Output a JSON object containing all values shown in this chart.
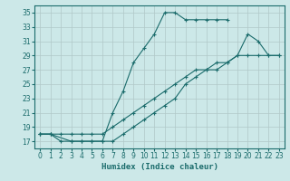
{
  "xlabel": "Humidex (Indice chaleur)",
  "bg_color": "#cce8e8",
  "grid_color": "#b0c8c8",
  "line_color": "#1a6b6b",
  "xlim": [
    -0.5,
    23.5
  ],
  "ylim": [
    16,
    36
  ],
  "xticks": [
    0,
    1,
    2,
    3,
    4,
    5,
    6,
    7,
    8,
    9,
    10,
    11,
    12,
    13,
    14,
    15,
    16,
    17,
    18,
    19,
    20,
    21,
    22,
    23
  ],
  "yticks": [
    17,
    19,
    21,
    23,
    25,
    27,
    29,
    31,
    33,
    35
  ],
  "line1_x": [
    0,
    1,
    2,
    3,
    4,
    5,
    6,
    7,
    8,
    9,
    10,
    11,
    12,
    13,
    14,
    15,
    16,
    17,
    18
  ],
  "line1_y": [
    18,
    18,
    17,
    17,
    17,
    17,
    17,
    21,
    24,
    28,
    30,
    32,
    35,
    35,
    34,
    34,
    34,
    34,
    34
  ],
  "line2_x": [
    0,
    1,
    3,
    4,
    5,
    6,
    7,
    8,
    9,
    10,
    11,
    12,
    13,
    14,
    15,
    16,
    17,
    18,
    19,
    20,
    21,
    22,
    23
  ],
  "line2_y": [
    18,
    18,
    17,
    17,
    17,
    17,
    17,
    18,
    19,
    20,
    21,
    22,
    23,
    25,
    26,
    27,
    27,
    28,
    29,
    32,
    31,
    29,
    29
  ],
  "line3_x": [
    0,
    1,
    2,
    3,
    4,
    5,
    6,
    7,
    8,
    9,
    10,
    11,
    12,
    13,
    14,
    15,
    16,
    17,
    18,
    19,
    20,
    21,
    22,
    23
  ],
  "line3_y": [
    18,
    18,
    18,
    18,
    18,
    18,
    18,
    19,
    20,
    21,
    22,
    23,
    24,
    25,
    26,
    27,
    27,
    28,
    28,
    29,
    29,
    29,
    29,
    29
  ]
}
